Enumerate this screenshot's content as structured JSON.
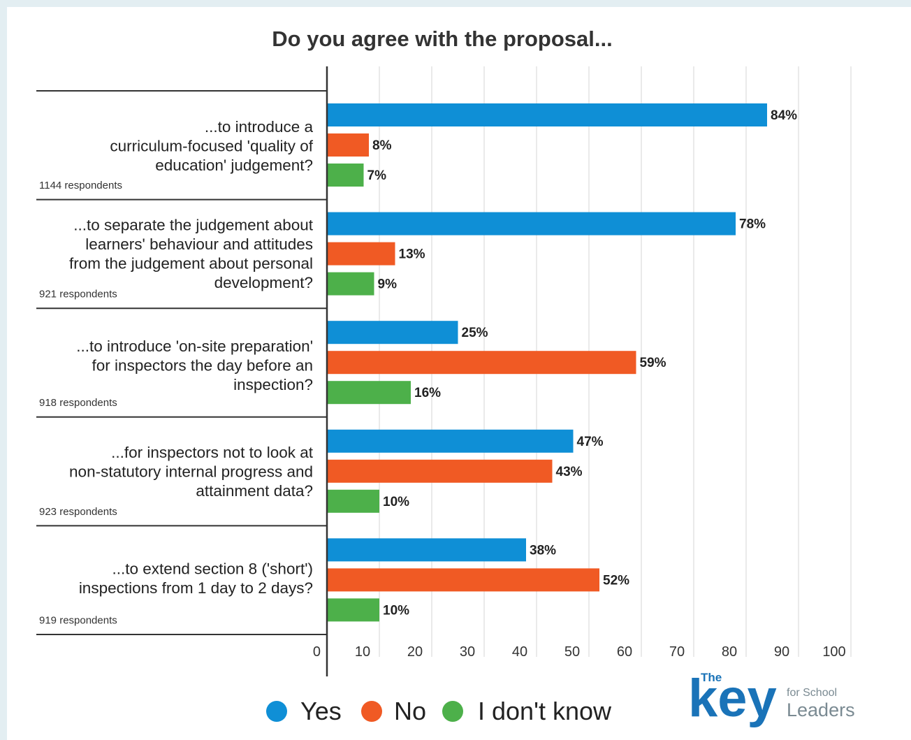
{
  "chart_data": {
    "type": "bar",
    "orientation": "horizontal",
    "title": "Do you agree with the proposal...",
    "xlim": [
      0,
      100
    ],
    "x_ticks": [
      "0",
      "10",
      "20",
      "30",
      "40",
      "50",
      "60",
      "70",
      "80",
      "90",
      "100"
    ],
    "grid": true,
    "legend_position": "bottom",
    "categories": [
      {
        "label_lines": [
          "...to introduce a",
          "curriculum-focused 'quality of",
          "education' judgement?"
        ],
        "respondents": "1144 respondents"
      },
      {
        "label_lines": [
          "...to separate the judgement about",
          "learners' behaviour and attitudes",
          "from the judgement about personal",
          "development?"
        ],
        "respondents": "921 respondents"
      },
      {
        "label_lines": [
          "...to introduce 'on-site preparation'",
          "for inspectors the day before an",
          "inspection?"
        ],
        "respondents": "918 respondents"
      },
      {
        "label_lines": [
          "...for inspectors not to look at",
          "non-statutory internal progress and",
          "attainment data?"
        ],
        "respondents": "923 respondents"
      },
      {
        "label_lines": [
          "...to extend section 8 ('short')",
          "inspections from 1 day to 2 days?"
        ],
        "respondents": "919 respondents"
      }
    ],
    "series": [
      {
        "name": "Yes",
        "color": "#0f8fd6",
        "values": [
          84,
          78,
          25,
          47,
          38
        ],
        "labels": [
          "84%",
          "78%",
          "25%",
          "47%",
          "38%"
        ]
      },
      {
        "name": "No",
        "color": "#f05a24",
        "values": [
          8,
          13,
          59,
          43,
          52
        ],
        "labels": [
          "8%",
          "13%",
          "59%",
          "43%",
          "52%"
        ]
      },
      {
        "name": "I don't know",
        "color": "#4db04a",
        "values": [
          7,
          9,
          16,
          10,
          10
        ],
        "labels": [
          "7%",
          "9%",
          "16%",
          "10%",
          "10%"
        ]
      }
    ]
  },
  "logo": {
    "the": "The",
    "key": "key",
    "line1": "for School",
    "line2": "Leaders",
    "color": "#1a73b8"
  }
}
